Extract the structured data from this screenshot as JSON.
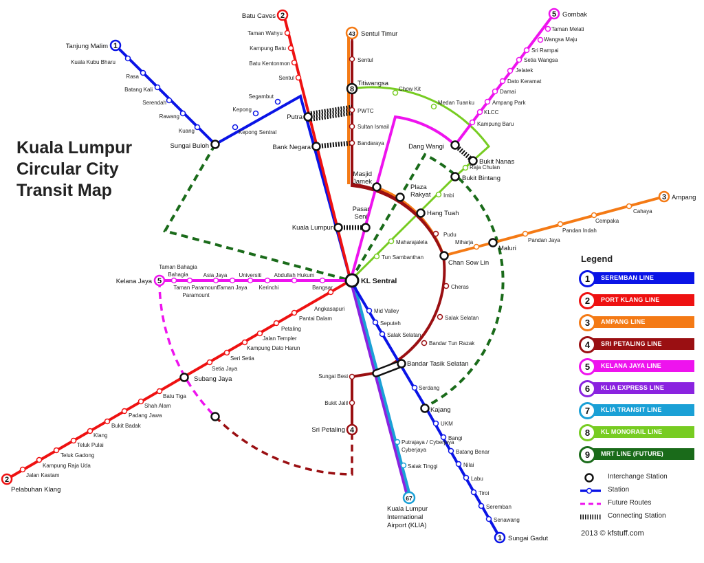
{
  "title": {
    "line1": "Kuala Lumpur",
    "line2": "Circular City",
    "line3": "Transit Map"
  },
  "credit": "2013 © kfstuff.com",
  "legend": {
    "heading": "Legend",
    "lines": [
      {
        "number": "1",
        "name": "SEREMBAN LINE",
        "color": "#0a14e6"
      },
      {
        "number": "2",
        "name": "PORT KLANG LINE",
        "color": "#ee1111"
      },
      {
        "number": "3",
        "name": "AMPANG LINE",
        "color": "#f47a15"
      },
      {
        "number": "4",
        "name": "SRI PETALING LINE",
        "color": "#9a0f12"
      },
      {
        "number": "5",
        "name": "KELANA JAYA LINE",
        "color": "#ee13ee"
      },
      {
        "number": "6",
        "name": "KLIA EXPRESS LINE",
        "color": "#8a23e0"
      },
      {
        "number": "7",
        "name": "KLIA TRANSIT LINE",
        "color": "#1aa0d6"
      },
      {
        "number": "8",
        "name": "KL MONORAIL LINE",
        "color": "#77cc22"
      },
      {
        "number": "9",
        "name": "MRT LINE (FUTURE)",
        "color": "#1a6b1a"
      }
    ],
    "keys": {
      "interchange": "Interchange Station",
      "station": "Station",
      "future": "Future Routes",
      "connecting": "Connecting Station"
    }
  },
  "colors": {
    "seremban": "#0a14e6",
    "portklang": "#ee1111",
    "ampang": "#f47a15",
    "sripetaling": "#9a0f12",
    "kelanajaya": "#ee13ee",
    "kliaexpress": "#8a23e0",
    "kliatransit": "#1aa0d6",
    "monorail": "#77cc22",
    "mrt": "#1a6b1a"
  },
  "terminals": [
    {
      "id": "t-tanjung-malim",
      "number": "1",
      "label": "Tanjung Malim",
      "line": "seremban"
    },
    {
      "id": "t-sungai-gadut",
      "number": "1",
      "label": "Sungai Gadut",
      "line": "seremban"
    },
    {
      "id": "t-batu-caves",
      "number": "2",
      "label": "Batu Caves",
      "line": "portklang"
    },
    {
      "id": "t-pelabuhan-klang",
      "number": "2",
      "label": "Pelabuhan Klang",
      "line": "portklang"
    },
    {
      "id": "t-ampang",
      "number": "3",
      "label": "Ampang",
      "line": "ampang"
    },
    {
      "id": "t-sri-petaling",
      "number": "4",
      "label": "Sri Petaling",
      "line": "sripetaling"
    },
    {
      "id": "t-gombak",
      "number": "5",
      "label": "Gombak",
      "line": "kelanajaya"
    },
    {
      "id": "t-kelana-jaya",
      "number": "5",
      "label": "Kelana Jaya",
      "line": "kelanajaya"
    },
    {
      "id": "t-sentul-timur",
      "number": "43",
      "label": "Sentul Timur",
      "line": "ampang"
    },
    {
      "id": "t-klia",
      "number": "67",
      "label": "Kuala Lumpur International Airport (KLIA)",
      "line": "kliatransit"
    },
    {
      "id": "t-titiwangsa",
      "number": "8",
      "label": "Titiwangsa",
      "line": "monorail"
    }
  ],
  "stations": {
    "seremban_north": [
      "Kuala Kubu Bharu",
      "Rasa",
      "Batang Kali",
      "Serendah",
      "Rawang",
      "Kuang",
      "Kepong Sentral",
      "Kepong",
      "Segambut"
    ],
    "seremban_south": [
      "Mid Valley",
      "Seputeh",
      "Salak Selatan",
      "Serdang",
      "UKM",
      "Bangi",
      "Batang Benar",
      "Nilai",
      "Labu",
      "Tiroi",
      "Seremban",
      "Senawang"
    ],
    "portklang_north": [
      "Taman Wahyu",
      "Kampung Batu",
      "Batu Kentonmon",
      "Sentul"
    ],
    "portklang_south": [
      "Angkasapuri",
      "Pantai Dalam",
      "Petaling",
      "Jalan Templer",
      "Kampung Dato Harun",
      "Seri Setia",
      "Setia Jaya",
      "Batu Tiga",
      "Shah Alam",
      "Padang Jawa",
      "Bukit Badak",
      "Klang",
      "Teluk Pulai",
      "Teluk Gadong",
      "Kampung Raja Uda",
      "Jalan Kastam"
    ],
    "ampang": [
      "Sentul",
      "Sultan Ismail",
      "Bandaraya",
      "PWTC",
      "Pudu",
      "Miharja",
      "Pandan Jaya",
      "Pandan Indah",
      "Cempaka",
      "Cahaya"
    ],
    "sripetaling": [
      "Cheras",
      "Salak Selatan",
      "Bandar Tun Razak",
      "Sungai Besi",
      "Bukit Jalil"
    ],
    "kelanajaya": [
      "Taman Melati",
      "Wangsa Maju",
      "Sri Rampai",
      "Setia Wangsa",
      "Jelatek",
      "Dato Keramat",
      "Damai",
      "Ampang Park",
      "KLCC",
      "Kampung Baru",
      "Taman Bahagia",
      "Taman Paramount",
      "Asia Jaya",
      "Taman Jaya",
      "Universiti",
      "Kerinchi",
      "Abdullah Hukum",
      "Bangsar"
    ],
    "monorail": [
      "Chow Kit",
      "Medan Tuanku",
      "Raja Chulan",
      "Imbi",
      "Maharajalela",
      "Tun Sambanthan"
    ],
    "kliatransit": [
      "Putrajaya / Cyberjaya",
      "Salak Tinggi"
    ]
  },
  "interchanges": [
    "KL Sentral",
    "Masjid Jamek",
    "Plaza Rakyat",
    "Hang Tuah",
    "Chan Sow Lin",
    "Maluri",
    "Bukit Nanas",
    "Bukit Bintang",
    "Dang Wangi",
    "Putra",
    "Bank Negara",
    "Kuala Lumpur",
    "Pasar Seni",
    "Sungai Buloh",
    "Subang Jaya",
    "Bandar Tasik Selatan",
    "Kajang"
  ]
}
